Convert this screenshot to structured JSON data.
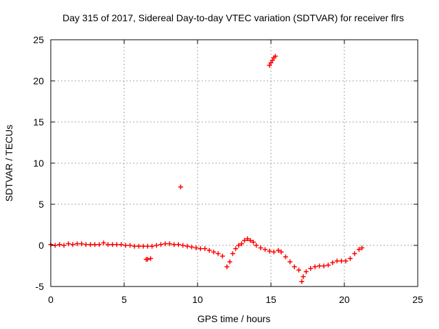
{
  "chart_data": {
    "type": "scatter",
    "title": "Day 315 of 2017, Sidereal Day-to-day VTEC variation (SDTVAR) for receiver flrs",
    "xlabel": "GPS time / hours",
    "ylabel": "SDTVAR / TECUs",
    "xlim": [
      0,
      25
    ],
    "ylim": [
      -5,
      25
    ],
    "xticks": [
      0,
      5,
      10,
      15,
      20,
      25
    ],
    "yticks": [
      -5,
      0,
      5,
      10,
      15,
      20,
      25
    ],
    "grid": true,
    "marker": "+",
    "series_color": "#ff0000",
    "series": [
      {
        "name": "SDTVAR",
        "points": [
          [
            0.0,
            0.1
          ],
          [
            0.3,
            0.0
          ],
          [
            0.6,
            0.1
          ],
          [
            0.9,
            0.0
          ],
          [
            1.2,
            0.2
          ],
          [
            1.5,
            0.1
          ],
          [
            1.8,
            0.2
          ],
          [
            2.1,
            0.2
          ],
          [
            2.4,
            0.1
          ],
          [
            2.7,
            0.1
          ],
          [
            3.0,
            0.1
          ],
          [
            3.3,
            0.1
          ],
          [
            3.6,
            0.3
          ],
          [
            3.9,
            0.1
          ],
          [
            4.2,
            0.1
          ],
          [
            4.5,
            0.1
          ],
          [
            4.8,
            0.1
          ],
          [
            5.1,
            0.0
          ],
          [
            5.4,
            0.0
          ],
          [
            5.7,
            -0.1
          ],
          [
            6.0,
            -0.1
          ],
          [
            6.3,
            -0.1
          ],
          [
            6.6,
            -0.1
          ],
          [
            6.9,
            -0.1
          ],
          [
            6.5,
            -1.7
          ],
          [
            6.6,
            -1.7
          ],
          [
            6.8,
            -1.6
          ],
          [
            7.2,
            0.0
          ],
          [
            7.5,
            0.1
          ],
          [
            7.8,
            0.2
          ],
          [
            8.1,
            0.2
          ],
          [
            8.4,
            0.1
          ],
          [
            8.7,
            0.1
          ],
          [
            8.85,
            7.1
          ],
          [
            9.0,
            0.0
          ],
          [
            9.3,
            -0.1
          ],
          [
            9.6,
            -0.2
          ],
          [
            9.9,
            -0.3
          ],
          [
            10.2,
            -0.4
          ],
          [
            10.5,
            -0.4
          ],
          [
            10.8,
            -0.6
          ],
          [
            11.1,
            -0.8
          ],
          [
            11.4,
            -1.0
          ],
          [
            11.7,
            -1.3
          ],
          [
            12.0,
            -2.6
          ],
          [
            12.2,
            -2.0
          ],
          [
            12.4,
            -1.0
          ],
          [
            12.6,
            -0.4
          ],
          [
            12.8,
            0.0
          ],
          [
            13.0,
            0.2
          ],
          [
            13.2,
            0.6
          ],
          [
            13.4,
            0.8
          ],
          [
            13.6,
            0.6
          ],
          [
            13.8,
            0.4
          ],
          [
            14.0,
            0.0
          ],
          [
            14.3,
            -0.3
          ],
          [
            14.6,
            -0.5
          ],
          [
            14.9,
            -0.7
          ],
          [
            15.2,
            -0.8
          ],
          [
            15.5,
            -0.6
          ],
          [
            14.9,
            21.9
          ],
          [
            15.0,
            22.2
          ],
          [
            15.1,
            22.5
          ],
          [
            15.2,
            22.8
          ],
          [
            15.3,
            23.0
          ],
          [
            15.7,
            -0.8
          ],
          [
            16.0,
            -1.4
          ],
          [
            16.3,
            -2.0
          ],
          [
            16.6,
            -2.6
          ],
          [
            16.9,
            -3.0
          ],
          [
            17.1,
            -4.4
          ],
          [
            17.2,
            -3.8
          ],
          [
            17.4,
            -3.2
          ],
          [
            17.7,
            -2.8
          ],
          [
            18.0,
            -2.6
          ],
          [
            18.3,
            -2.5
          ],
          [
            18.6,
            -2.5
          ],
          [
            18.9,
            -2.4
          ],
          [
            19.2,
            -2.1
          ],
          [
            19.5,
            -1.9
          ],
          [
            19.8,
            -1.9
          ],
          [
            20.1,
            -1.9
          ],
          [
            20.4,
            -1.6
          ],
          [
            20.7,
            -1.0
          ],
          [
            21.0,
            -0.5
          ],
          [
            21.2,
            -0.3
          ]
        ]
      }
    ]
  }
}
